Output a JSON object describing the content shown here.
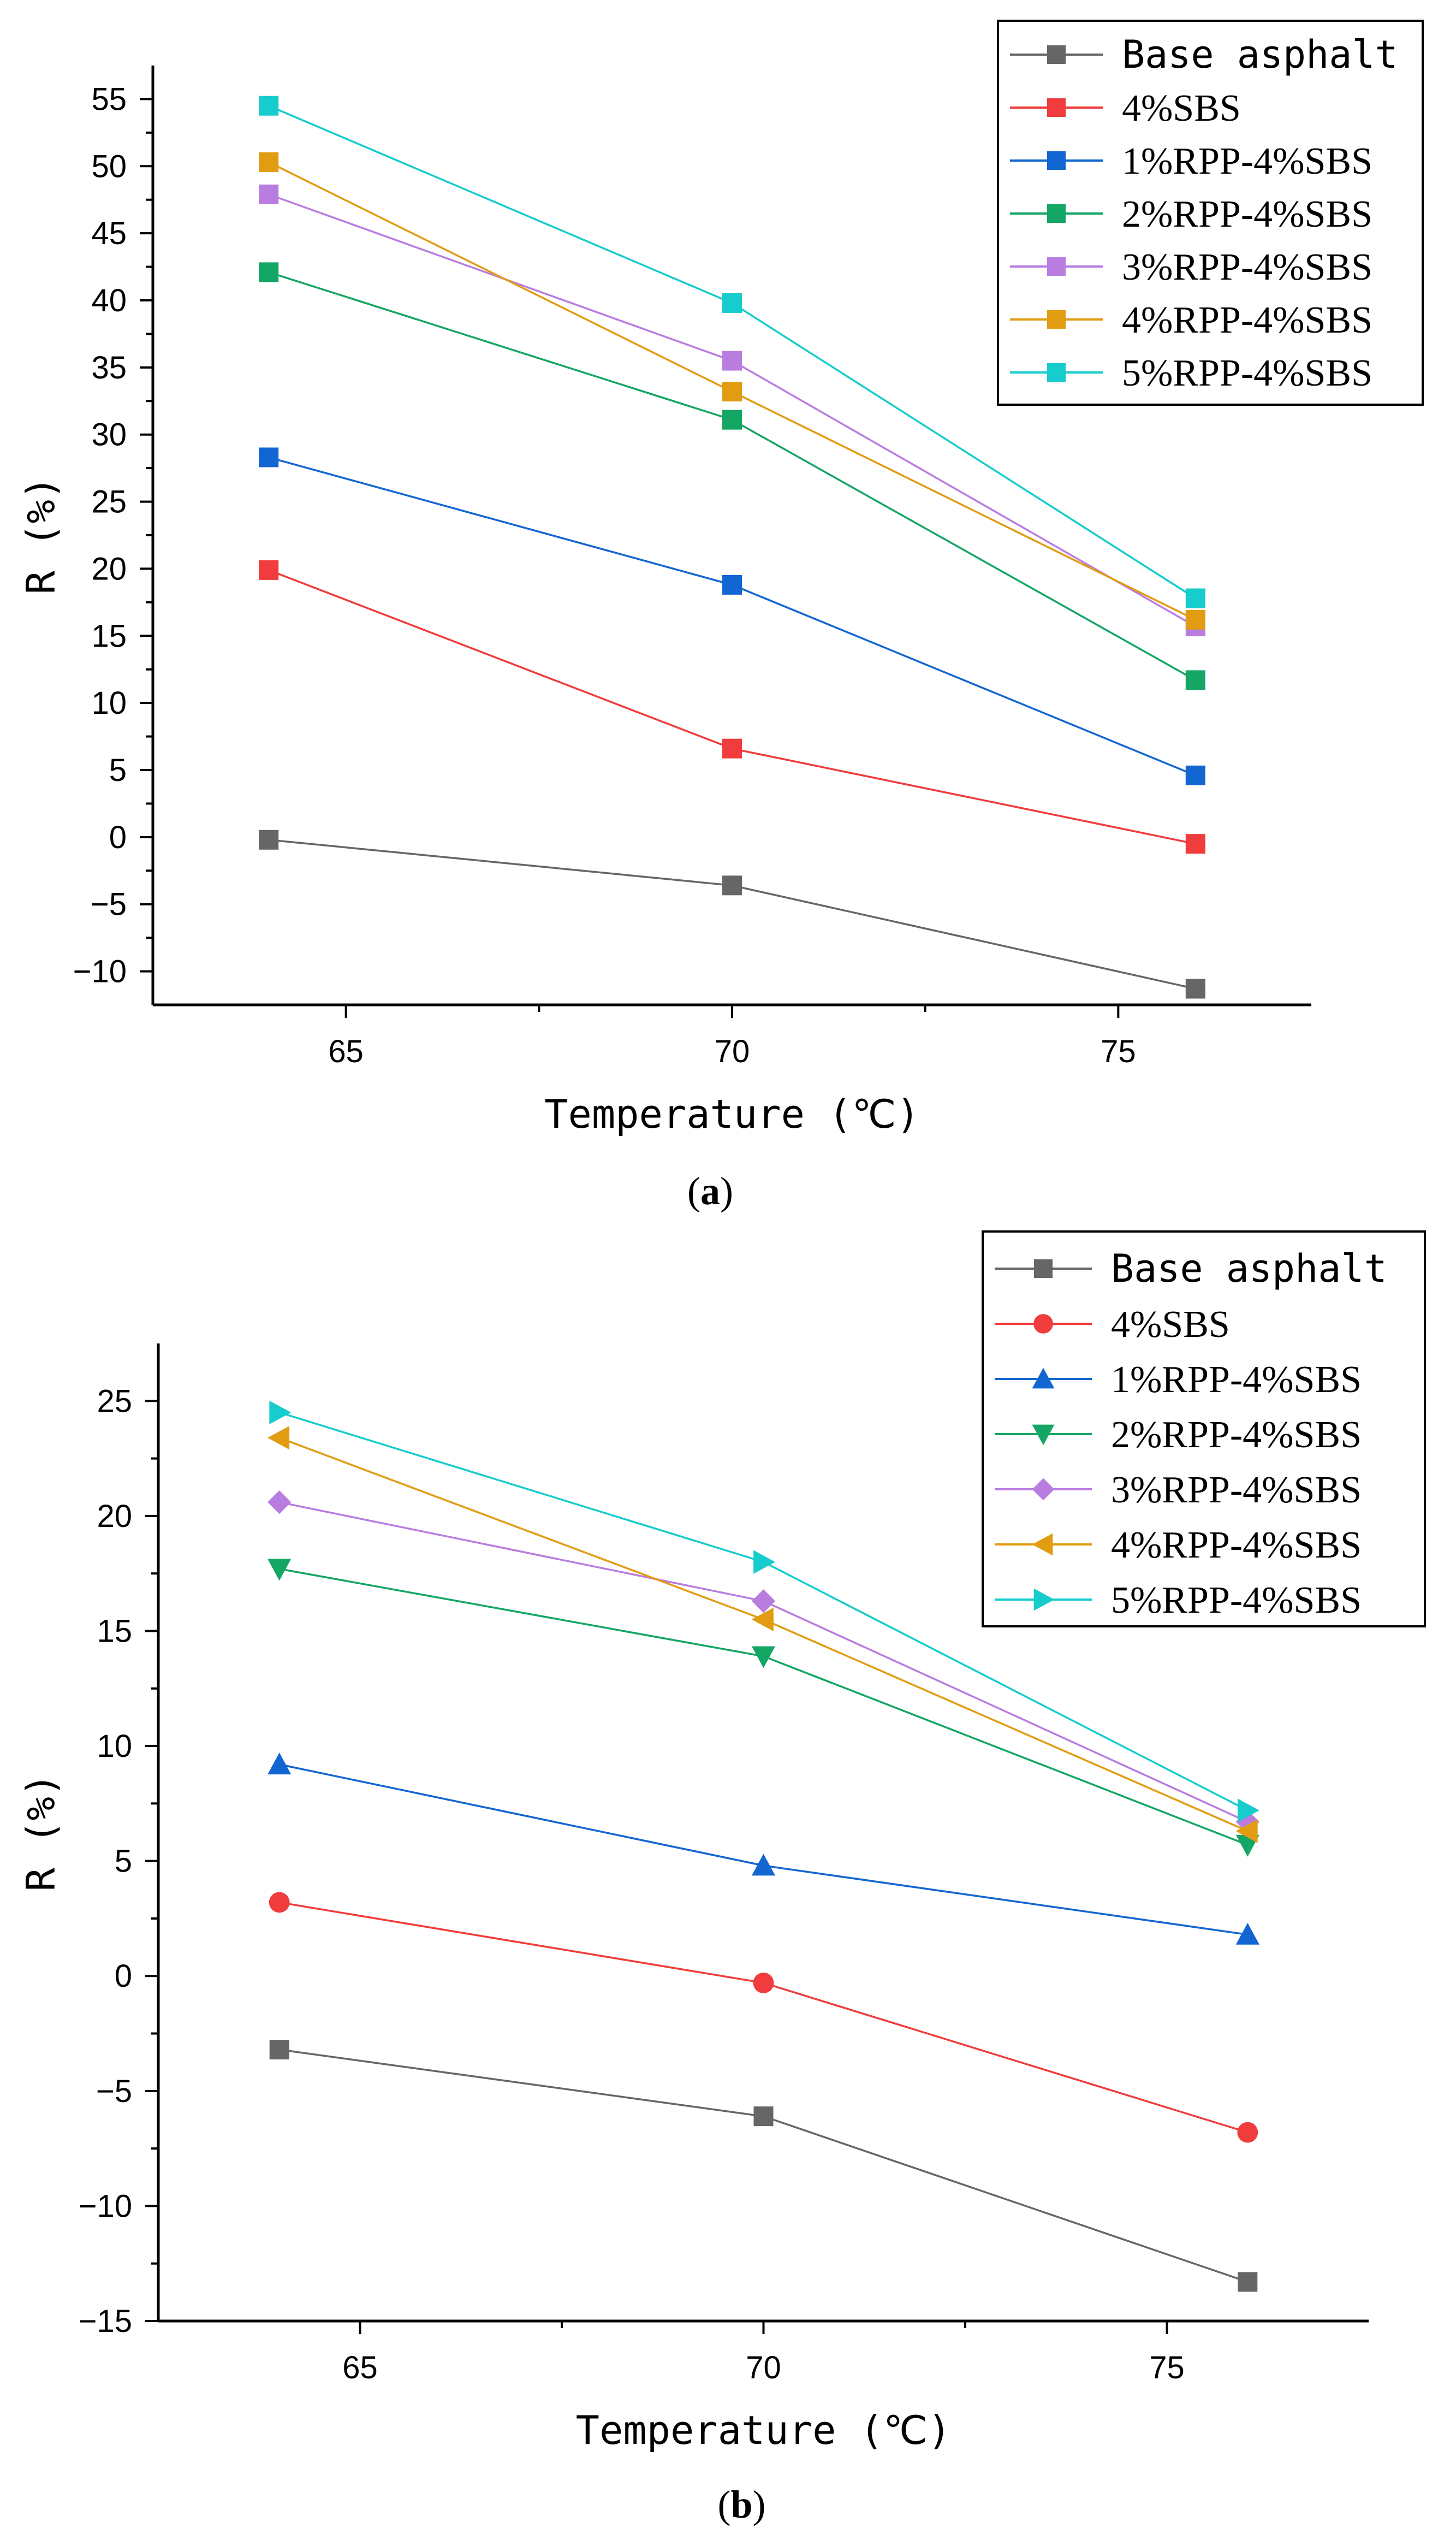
{
  "chart_data": [
    {
      "type": "line",
      "caption_open": "(",
      "caption_letter": "a",
      "caption_close": ")",
      "xlabel": "Temperature (℃)",
      "ylabel": "R (%)",
      "xlim": [
        62.5,
        77.5
      ],
      "ylim": [
        -12.5,
        57.5
      ],
      "xticks": [
        65,
        70,
        75
      ],
      "yticks": [
        -10,
        -5,
        0,
        5,
        10,
        15,
        20,
        25,
        30,
        35,
        40,
        45,
        50,
        55
      ],
      "x": [
        64,
        70,
        76
      ],
      "legend_position": "top-right",
      "series": [
        {
          "name": "Base asphalt",
          "color": "#666666",
          "marker": "square",
          "values": [
            -0.2,
            -3.6,
            -11.3
          ]
        },
        {
          "name": "4%SBS",
          "color": "#f03c3c",
          "marker": "square",
          "values": [
            19.9,
            6.6,
            -0.5
          ]
        },
        {
          "name": "1%RPP-4%SBS",
          "color": "#1266d2",
          "marker": "square",
          "values": [
            28.3,
            18.8,
            4.6
          ]
        },
        {
          "name": "2%RPP-4%SBS",
          "color": "#14a664",
          "marker": "square",
          "values": [
            42.1,
            31.1,
            11.7
          ]
        },
        {
          "name": "3%RPP-4%SBS",
          "color": "#b97de0",
          "marker": "square",
          "values": [
            47.9,
            35.5,
            15.7
          ]
        },
        {
          "name": "4%RPP-4%SBS",
          "color": "#e19c12",
          "marker": "square",
          "values": [
            50.3,
            33.2,
            16.2
          ]
        },
        {
          "name": "5%RPP-4%SBS",
          "color": "#17cccc",
          "marker": "square",
          "values": [
            54.5,
            39.8,
            17.8
          ]
        }
      ]
    },
    {
      "type": "line",
      "caption_open": "(",
      "caption_letter": "b",
      "caption_close": ")",
      "xlabel": "Temperature (℃)",
      "ylabel": "R (%)",
      "xlim": [
        62.5,
        77.5
      ],
      "ylim": [
        -15,
        27.5
      ],
      "xticks": [
        65,
        70,
        75
      ],
      "yticks": [
        -15,
        -10,
        -5,
        0,
        5,
        10,
        15,
        20,
        25
      ],
      "x": [
        64,
        70,
        76
      ],
      "legend_position": "top-right",
      "series": [
        {
          "name": "Base asphalt",
          "color": "#666666",
          "marker": "square",
          "values": [
            -3.2,
            -6.1,
            -13.3
          ]
        },
        {
          "name": "4%SBS",
          "color": "#f03c3c",
          "marker": "circle",
          "values": [
            3.2,
            -0.3,
            -6.8
          ]
        },
        {
          "name": "1%RPP-4%SBS",
          "color": "#1266d2",
          "marker": "triangle-up",
          "values": [
            9.2,
            4.8,
            1.8
          ]
        },
        {
          "name": "2%RPP-4%SBS",
          "color": "#14a664",
          "marker": "triangle-down",
          "values": [
            17.7,
            13.9,
            5.7
          ]
        },
        {
          "name": "3%RPP-4%SBS",
          "color": "#b97de0",
          "marker": "diamond",
          "values": [
            20.6,
            16.3,
            6.7
          ]
        },
        {
          "name": "4%RPP-4%SBS",
          "color": "#e19c12",
          "marker": "triangle-left",
          "values": [
            23.4,
            15.5,
            6.3
          ]
        },
        {
          "name": "5%RPP-4%SBS",
          "color": "#17cccc",
          "marker": "triangle-right",
          "values": [
            24.5,
            18.0,
            7.2
          ]
        }
      ]
    }
  ]
}
